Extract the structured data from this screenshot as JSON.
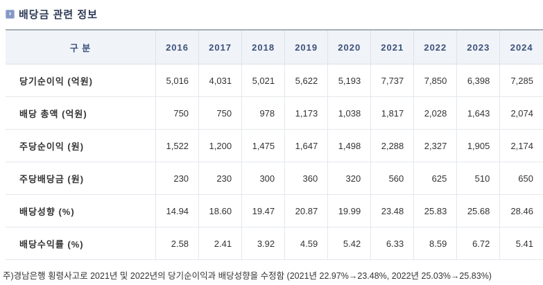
{
  "title": {
    "text": "배당금 관련 정보",
    "icon": "chevron-right-icon"
  },
  "table": {
    "header": {
      "label_col": "구 분",
      "years": [
        "2016",
        "2017",
        "2018",
        "2019",
        "2020",
        "2021",
        "2022",
        "2023",
        "2024"
      ]
    },
    "rows": [
      {
        "label": "당기순이익 (억원)",
        "values": [
          "5,016",
          "4,031",
          "5,021",
          "5,622",
          "5,193",
          "7,737",
          "7,850",
          "6,398",
          "7,285"
        ]
      },
      {
        "label": "배당 총액 (억원)",
        "values": [
          "750",
          "750",
          "978",
          "1,173",
          "1,038",
          "1,817",
          "2,028",
          "1,643",
          "2,074"
        ]
      },
      {
        "label": "주당순이익 (원)",
        "values": [
          "1,522",
          "1,200",
          "1,475",
          "1,647",
          "1,498",
          "2,288",
          "2,327",
          "1,905",
          "2,174"
        ]
      },
      {
        "label": "주당배당금 (원)",
        "values": [
          "230",
          "230",
          "300",
          "360",
          "320",
          "560",
          "625",
          "510",
          "650"
        ]
      },
      {
        "label": "배당성향 (%)",
        "values": [
          "14.94",
          "18.60",
          "19.47",
          "20.87",
          "19.99",
          "23.48",
          "25.83",
          "25.68",
          "28.46"
        ]
      },
      {
        "label": "배당수익률 (%)",
        "values": [
          "2.58",
          "2.41",
          "3.92",
          "4.59",
          "5.42",
          "6.33",
          "8.59",
          "6.72",
          "5.41"
        ]
      }
    ]
  },
  "footnote": "주)경남은행 횡령사고로 2021년 및 2022년의 당기순이익과 배당성향을 수정함 (2021년 22.97%→23.48%, 2022년 25.03%→25.83%)",
  "colors": {
    "header_bg": "#f0f3f8",
    "header_text": "#3c5179",
    "body_text": "#333333",
    "cell_border": "#e3e7ed",
    "table_top_border": "#a7aeb6",
    "title_text": "#2d3a55",
    "icon_bg": "#8598c5"
  },
  "icon_glyph": "›"
}
